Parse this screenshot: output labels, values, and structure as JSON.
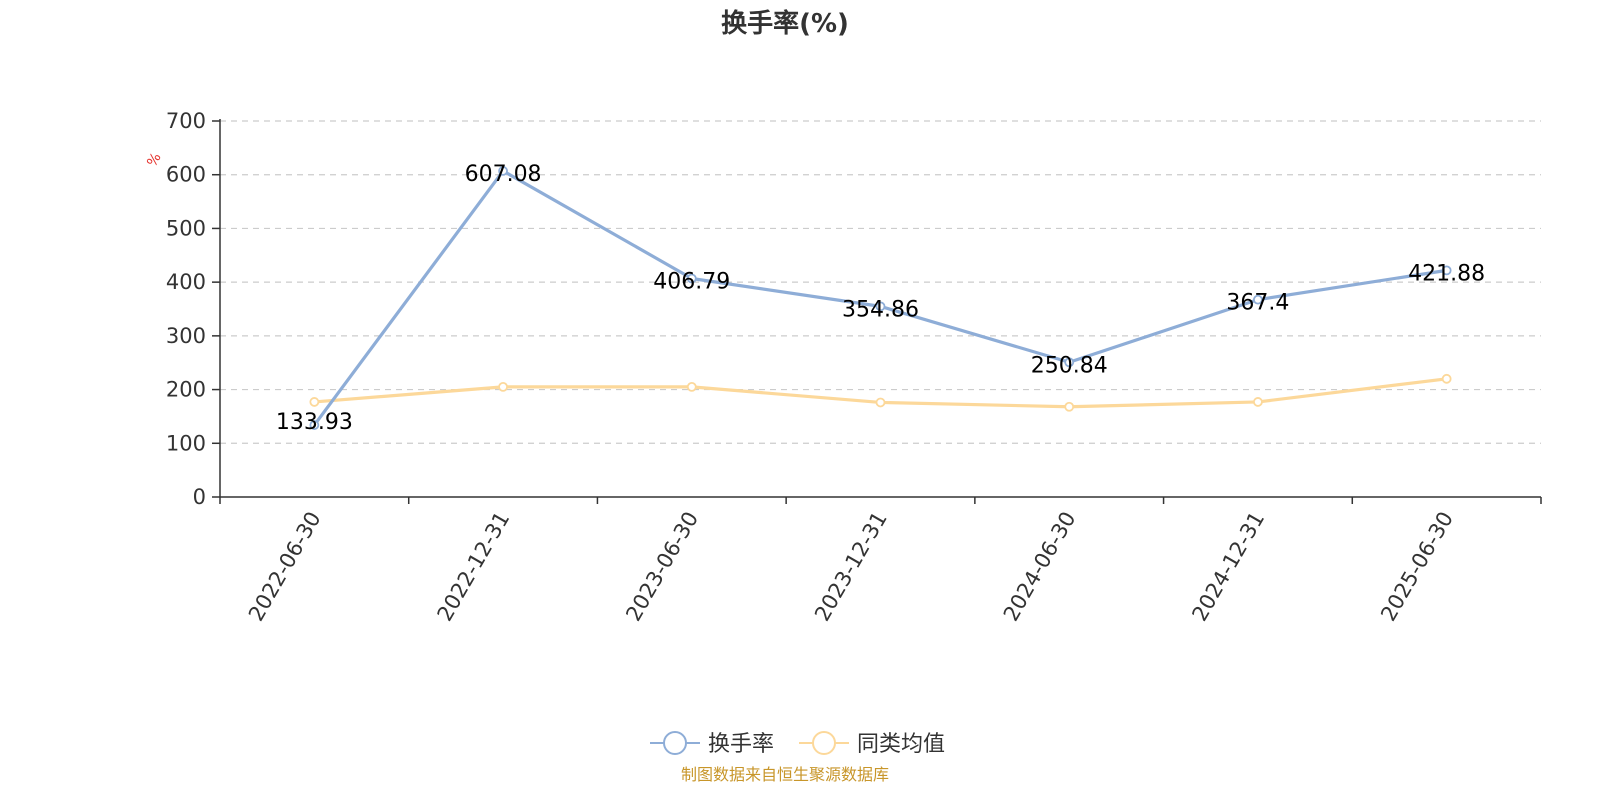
{
  "chart_data": {
    "type": "line",
    "title": "换手率(%)",
    "ylabel": "%",
    "ylim": [
      0,
      700
    ],
    "yticks": [
      0,
      100,
      200,
      300,
      400,
      500,
      600,
      700
    ],
    "categories": [
      "2022-06-30",
      "2022-12-31",
      "2023-06-30",
      "2023-12-31",
      "2024-06-30",
      "2024-12-31",
      "2025-06-30"
    ],
    "series": [
      {
        "name": "换手率",
        "color": "#8eadd7",
        "values": [
          133.93,
          607.08,
          406.79,
          354.86,
          250.84,
          367.4,
          421.88
        ],
        "labels": [
          "133.93",
          "607.08",
          "406.79",
          "354.86",
          "250.84",
          "367.4",
          "421.88"
        ]
      },
      {
        "name": "同类均值",
        "color": "#fcd89a",
        "values": [
          177,
          205,
          205,
          176,
          168,
          177,
          220
        ]
      }
    ],
    "grid": "horizontal-dashed",
    "legend": "bottom-center"
  },
  "source": "制图数据来自恒生聚源数据库",
  "colors": {
    "unit": "#e5322d",
    "source": "#c8962a",
    "axis": "#333333",
    "grid": "#cccccc"
  }
}
